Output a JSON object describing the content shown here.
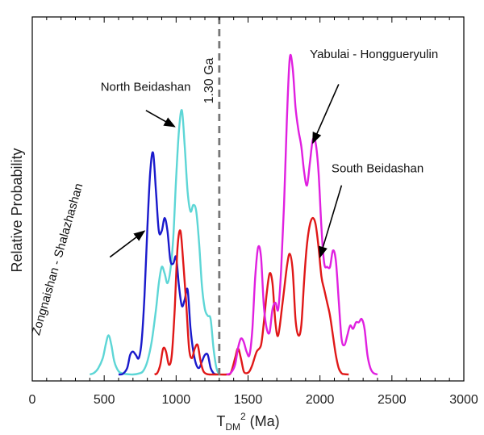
{
  "chart_data": {
    "type": "line",
    "title": "",
    "xlabel": {
      "main": "T",
      "sub": "DM",
      "sup": "2",
      "unit": " (Ma)"
    },
    "ylabel": "Relative Probability",
    "xlim": [
      0,
      3000
    ],
    "ylim": [
      0,
      1
    ],
    "x_ticks": [
      "0",
      "500",
      "1000",
      "1500",
      "2000",
      "2500",
      "3000"
    ],
    "x_minor_step": 100,
    "grid": false,
    "legend": "none",
    "reference_line": {
      "x": 1300,
      "label": "1.30 Ga",
      "style": "dashed",
      "color": "#777777"
    },
    "series": [
      {
        "name": "North Beidashan",
        "color": "#5dd6d6",
        "x": [
          400,
          430,
          460,
          490,
          510,
          530,
          550,
          570,
          600,
          630,
          660,
          700,
          740,
          770,
          800,
          830,
          860,
          880,
          900,
          920,
          940,
          960,
          980,
          1000,
          1020,
          1040,
          1060,
          1080,
          1100,
          1120,
          1140,
          1160,
          1180,
          1200,
          1220,
          1240,
          1260,
          1280,
          1300
        ],
        "y": [
          0,
          0.005,
          0.02,
          0.05,
          0.09,
          0.12,
          0.09,
          0.04,
          0.01,
          0.003,
          0.001,
          0,
          0.003,
          0.01,
          0.04,
          0.1,
          0.2,
          0.28,
          0.33,
          0.31,
          0.28,
          0.32,
          0.42,
          0.6,
          0.75,
          0.81,
          0.7,
          0.56,
          0.5,
          0.52,
          0.5,
          0.4,
          0.27,
          0.2,
          0.18,
          0.17,
          0.08,
          0.02,
          0
        ]
      },
      {
        "name": "Zongnaishan - Shalazhashan",
        "color": "#1a1acc",
        "x": [
          600,
          630,
          660,
          680,
          700,
          720,
          740,
          760,
          780,
          800,
          820,
          840,
          860,
          880,
          900,
          920,
          940,
          960,
          980,
          1000,
          1020,
          1040,
          1060,
          1080,
          1100,
          1120,
          1140,
          1160,
          1180,
          1200,
          1220,
          1240,
          1260,
          1280
        ],
        "y": [
          0,
          0.002,
          0.02,
          0.06,
          0.07,
          0.06,
          0.05,
          0.1,
          0.24,
          0.45,
          0.62,
          0.68,
          0.56,
          0.44,
          0.44,
          0.48,
          0.44,
          0.35,
          0.34,
          0.36,
          0.27,
          0.21,
          0.23,
          0.26,
          0.14,
          0.07,
          0.03,
          0.02,
          0.04,
          0.06,
          0.06,
          0.02,
          0.004,
          0
        ]
      },
      {
        "name": "",
        "color": "#e01818",
        "x": [
          850,
          870,
          890,
          910,
          930,
          950,
          970,
          990,
          1010,
          1030,
          1050,
          1070,
          1090,
          1110,
          1130,
          1150,
          1170,
          1190,
          1210,
          1230,
          1250,
          1270,
          1290,
          1300,
          1350,
          1380,
          1410,
          1430,
          1450,
          1470,
          1490,
          1510,
          1530,
          1560,
          1590,
          1610,
          1630,
          1650,
          1670,
          1690,
          1710,
          1740,
          1770,
          1790,
          1810,
          1830,
          1850,
          1870,
          1890,
          1910,
          1930,
          1950,
          1970,
          1990,
          2010,
          2030,
          2050,
          2070,
          2090,
          2110,
          2130,
          2150,
          2170,
          2200
        ],
        "y": [
          0,
          0.005,
          0.03,
          0.08,
          0.07,
          0.03,
          0.06,
          0.2,
          0.39,
          0.44,
          0.34,
          0.22,
          0.08,
          0.05,
          0.08,
          0.09,
          0.04,
          0.01,
          0.002,
          0,
          0,
          0,
          0,
          0,
          0,
          0.005,
          0.05,
          0.08,
          0.05,
          0.01,
          0.004,
          0.01,
          0.03,
          0.07,
          0.09,
          0.16,
          0.25,
          0.31,
          0.28,
          0.16,
          0.12,
          0.22,
          0.33,
          0.37,
          0.32,
          0.17,
          0.12,
          0.15,
          0.29,
          0.4,
          0.46,
          0.48,
          0.46,
          0.39,
          0.3,
          0.26,
          0.22,
          0.18,
          0.12,
          0.06,
          0.02,
          0.004,
          0.001,
          0
        ]
      },
      {
        "name": "Yabulai - Honggueryulin",
        "color": "#e020e0",
        "x": [
          1350,
          1380,
          1410,
          1430,
          1450,
          1470,
          1490,
          1510,
          1530,
          1550,
          1570,
          1590,
          1610,
          1630,
          1650,
          1670,
          1690,
          1710,
          1730,
          1750,
          1770,
          1790,
          1810,
          1830,
          1850,
          1870,
          1890,
          1910,
          1930,
          1950,
          1970,
          1990,
          2010,
          2030,
          2050,
          2070,
          2090,
          2110,
          2130,
          2150,
          2170,
          2190,
          2210,
          2230,
          2250,
          2270,
          2290,
          2310,
          2330,
          2350,
          2370,
          2400
        ],
        "y": [
          0,
          0.005,
          0.03,
          0.08,
          0.11,
          0.1,
          0.07,
          0.06,
          0.14,
          0.3,
          0.39,
          0.36,
          0.21,
          0.14,
          0.13,
          0.2,
          0.22,
          0.2,
          0.32,
          0.52,
          0.78,
          0.97,
          0.94,
          0.82,
          0.75,
          0.7,
          0.62,
          0.58,
          0.65,
          0.72,
          0.71,
          0.62,
          0.45,
          0.34,
          0.33,
          0.33,
          0.38,
          0.35,
          0.23,
          0.11,
          0.09,
          0.12,
          0.15,
          0.14,
          0.16,
          0.16,
          0.17,
          0.14,
          0.06,
          0.02,
          0.005,
          0
        ]
      }
    ],
    "annotations": [
      {
        "text": "North Beidashan",
        "x": 475,
        "y": 0.87,
        "arrow_from": [
          790,
          0.81
        ],
        "arrow_to": [
          990,
          0.76
        ],
        "rotate": 0
      },
      {
        "text": "Zongnaishan - Shalazhashan",
        "x": 200,
        "y": 0.35,
        "arrow_from": [
          540,
          0.36
        ],
        "arrow_to": [
          780,
          0.44
        ],
        "rotate": -74
      },
      {
        "text": "Yabulai - Honggueryulin",
        "x": 1930,
        "y": 0.97,
        "arrow_from": [
          2130,
          0.89
        ],
        "arrow_to": [
          1950,
          0.71
        ],
        "rotate": 0
      },
      {
        "text": "South Beidashan",
        "x": 2080,
        "y": 0.62,
        "arrow_from": [
          2150,
          0.58
        ],
        "arrow_to": [
          2000,
          0.36
        ],
        "rotate": 0
      }
    ]
  }
}
